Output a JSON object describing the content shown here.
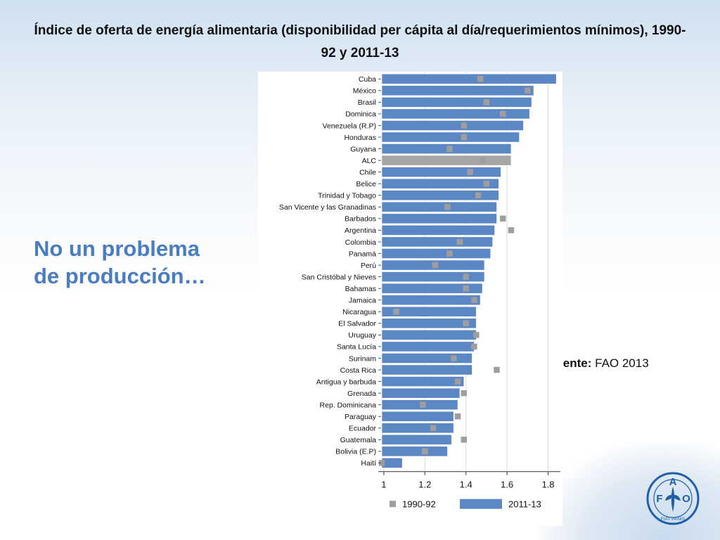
{
  "slide": {
    "title": "Índice de oferta de energía alimentaria (disponibilidad per cápita al día/requerimientos mínimos), 1990-92 y 2011-13",
    "subtitle_line1": "No un problema",
    "subtitle_line2": "de producción…",
    "source_label": "Fuente:",
    "source_value": "FAO 2013",
    "logo": {
      "letters": [
        "F",
        "A",
        "O"
      ],
      "motto": "FIAT PANIS"
    }
  },
  "chart_data": {
    "type": "bar",
    "orientation": "horizontal",
    "title": "",
    "xlim": [
      0.99,
      1.86
    ],
    "xticks": [
      "1",
      "1.2",
      "1.4",
      "1.6",
      "1.8"
    ],
    "xtick_values": [
      1,
      1.2,
      1.4,
      1.6,
      1.8
    ],
    "grid": true,
    "legend_position": "bottom",
    "categories": [
      "Cuba",
      "México",
      "Brasil",
      "Dominica",
      "Venezuela (R.P)",
      "Honduras",
      "Guyana",
      "ALC",
      "Chile",
      "Belice",
      "Trinidad y Tobago",
      "San Vicente y las Granadinas",
      "Barbados",
      "Argentina",
      "Colombia",
      "Panamá",
      "Perú",
      "San Cristóbal y Nieves",
      "Bahamas",
      "Jamaica",
      "Nicaragua",
      "El Salvador",
      "Uruguay",
      "Santa Lucía",
      "Surinam",
      "Costa Rica",
      "Antigua y barbuda",
      "Grenada",
      "Rep. Dominicana",
      "Paraguay",
      "Ecuador",
      "Guatemala",
      "Bolivia (E.P)",
      "Haití"
    ],
    "highlight_category": "ALC",
    "series": [
      {
        "name": "2011-13",
        "mark": "bar",
        "color": "#5b87c5",
        "highlight_color": "#a6a6a6",
        "values": [
          1.84,
          1.73,
          1.72,
          1.71,
          1.68,
          1.66,
          1.62,
          1.62,
          1.57,
          1.56,
          1.56,
          1.55,
          1.55,
          1.54,
          1.53,
          1.52,
          1.49,
          1.49,
          1.48,
          1.47,
          1.45,
          1.45,
          1.45,
          1.44,
          1.43,
          1.43,
          1.39,
          1.37,
          1.36,
          1.34,
          1.34,
          1.33,
          1.31,
          1.09
        ]
      },
      {
        "name": "1990-92",
        "mark": "square",
        "color": "#9e9e9e",
        "values": [
          1.47,
          1.7,
          1.5,
          1.58,
          1.39,
          1.39,
          1.32,
          1.48,
          1.42,
          1.5,
          1.46,
          1.31,
          1.58,
          1.62,
          1.37,
          1.32,
          1.25,
          1.4,
          1.4,
          1.44,
          1.06,
          1.4,
          1.45,
          1.44,
          1.34,
          1.55,
          1.36,
          1.39,
          1.19,
          1.36,
          1.24,
          1.39,
          1.2,
          0.99
        ]
      }
    ]
  }
}
